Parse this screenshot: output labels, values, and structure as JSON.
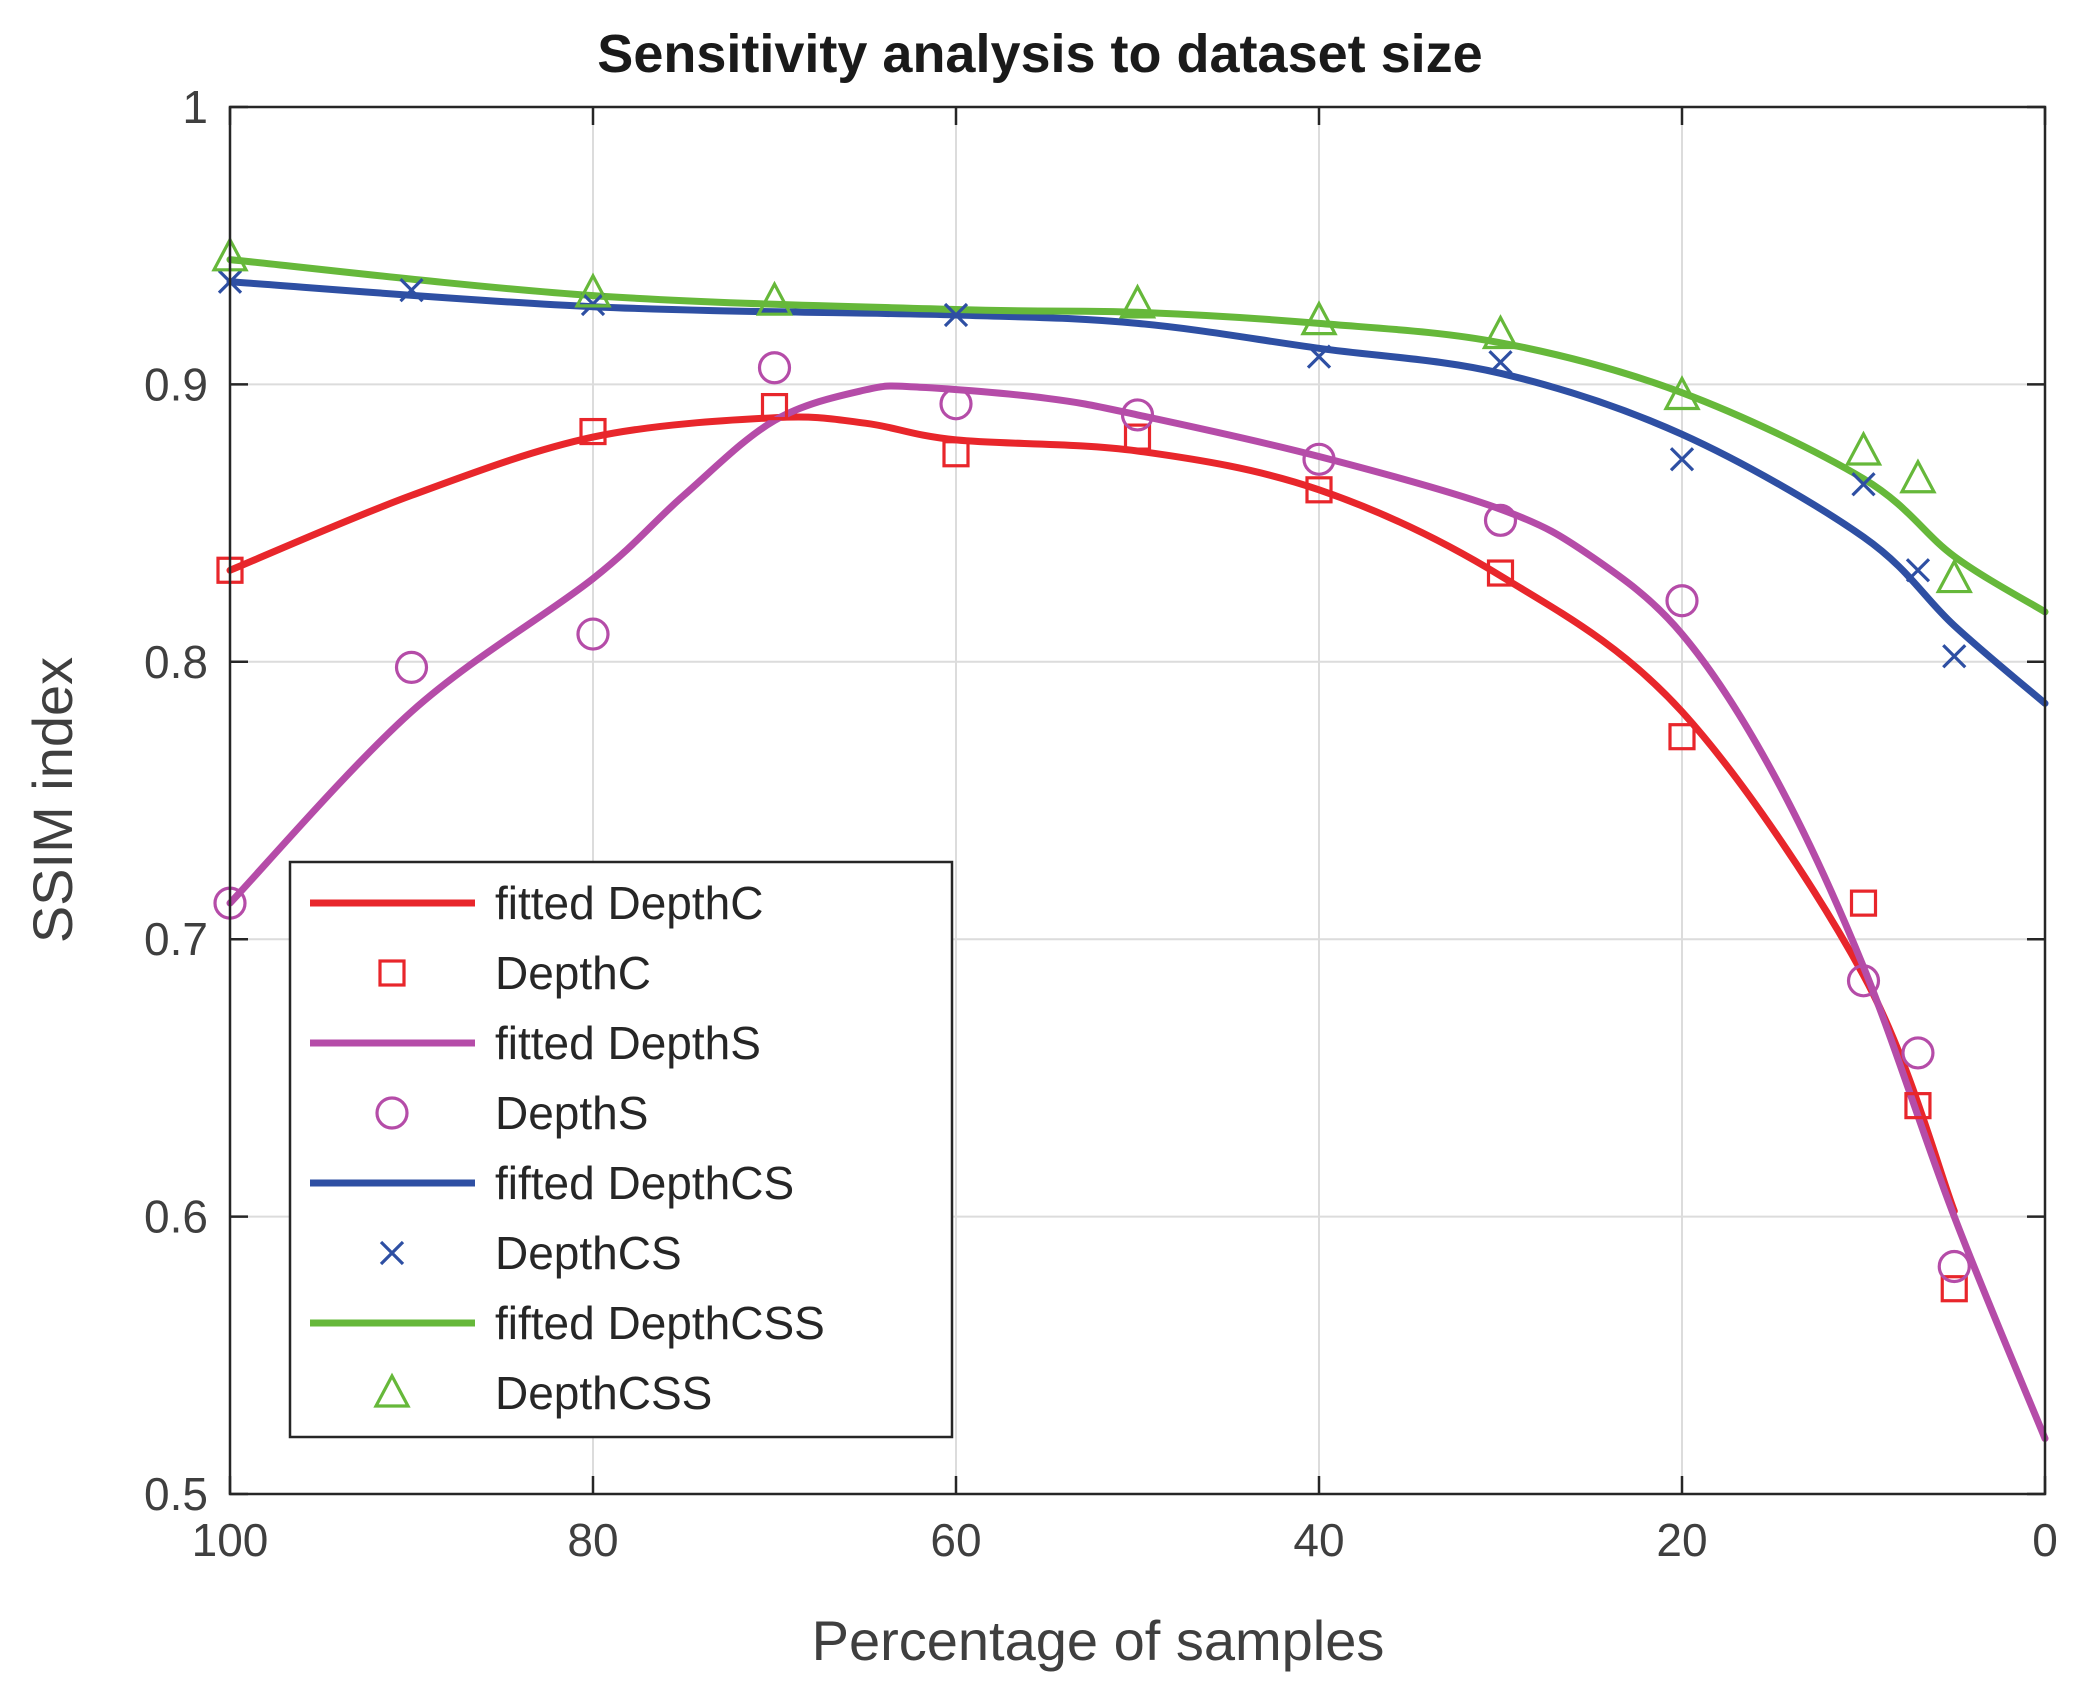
{
  "chart_data": {
    "type": "line",
    "title": "Sensitivity analysis to dataset size",
    "xlabel": "Percentage of samples",
    "ylabel": "SSIM index",
    "xlim": [
      100,
      0
    ],
    "ylim": [
      0.5,
      1
    ],
    "x_ticks": [
      100,
      80,
      60,
      40,
      20,
      0
    ],
    "x_tick_labels": [
      "100",
      "80",
      "60",
      "40",
      "20",
      "0"
    ],
    "y_ticks": [
      0.5,
      0.6,
      0.7,
      0.8,
      0.9,
      1
    ],
    "y_tick_labels": [
      "0.5",
      "0.6",
      "0.7",
      "0.8",
      "0.9",
      "1"
    ],
    "grid": true,
    "legend_position": "bottom-left",
    "series": [
      {
        "name": "fitted DepthC",
        "kind": "fit",
        "color": "#e8262b",
        "x": [
          100,
          90,
          80,
          70,
          65,
          60,
          50,
          40,
          30,
          20,
          10,
          5
        ],
        "y": [
          0.833,
          0.86,
          0.881,
          0.888,
          0.886,
          0.88,
          0.876,
          0.862,
          0.831,
          0.782,
          0.687,
          0.602
        ]
      },
      {
        "name": "DepthC",
        "kind": "marker",
        "marker": "square",
        "color": "#e8262b",
        "x": [
          100,
          80,
          70,
          60,
          50,
          40,
          30,
          20,
          10,
          7,
          5
        ],
        "y": [
          0.833,
          0.883,
          0.892,
          0.875,
          0.881,
          0.862,
          0.832,
          0.773,
          0.713,
          0.64,
          0.574
        ]
      },
      {
        "name": "fitted DepthS",
        "kind": "fit",
        "color": "#b54ca8",
        "x": [
          100,
          90,
          80,
          75,
          70,
          65,
          62,
          55,
          50,
          40,
          30,
          25,
          20,
          15,
          10,
          5,
          0
        ],
        "y": [
          0.713,
          0.782,
          0.83,
          0.86,
          0.887,
          0.898,
          0.899,
          0.895,
          0.889,
          0.874,
          0.855,
          0.838,
          0.81,
          0.76,
          0.69,
          0.6,
          0.52
        ]
      },
      {
        "name": "DepthS",
        "kind": "marker",
        "marker": "circle",
        "color": "#b54ca8",
        "x": [
          100,
          90,
          80,
          70,
          60,
          50,
          40,
          30,
          20,
          10,
          7,
          5
        ],
        "y": [
          0.713,
          0.798,
          0.81,
          0.906,
          0.893,
          0.889,
          0.873,
          0.851,
          0.822,
          0.685,
          0.659,
          0.582
        ]
      },
      {
        "name": "fifted DepthCS",
        "kind": "fit",
        "color": "#2e4fa3",
        "x": [
          100,
          80,
          60,
          50,
          40,
          30,
          20,
          10,
          5,
          0
        ],
        "y": [
          0.937,
          0.928,
          0.925,
          0.922,
          0.913,
          0.904,
          0.882,
          0.845,
          0.813,
          0.785
        ]
      },
      {
        "name": "DepthCS",
        "kind": "marker",
        "marker": "x",
        "color": "#2e4fa3",
        "x": [
          100,
          90,
          80,
          60,
          40,
          30,
          20,
          10,
          7,
          5
        ],
        "y": [
          0.937,
          0.934,
          0.929,
          0.925,
          0.91,
          0.908,
          0.873,
          0.864,
          0.833,
          0.802
        ]
      },
      {
        "name": "fifted DepthCSS",
        "kind": "fit",
        "color": "#66b83a",
        "x": [
          100,
          80,
          60,
          50,
          40,
          30,
          20,
          10,
          5,
          0
        ],
        "y": [
          0.945,
          0.932,
          0.927,
          0.926,
          0.922,
          0.915,
          0.897,
          0.866,
          0.838,
          0.818
        ]
      },
      {
        "name": "DepthCSS",
        "kind": "marker",
        "marker": "triangle",
        "color": "#66b83a",
        "x": [
          100,
          80,
          70,
          50,
          40,
          30,
          20,
          10,
          7,
          5
        ],
        "y": [
          0.946,
          0.933,
          0.93,
          0.929,
          0.923,
          0.918,
          0.896,
          0.876,
          0.866,
          0.83
        ]
      }
    ]
  }
}
